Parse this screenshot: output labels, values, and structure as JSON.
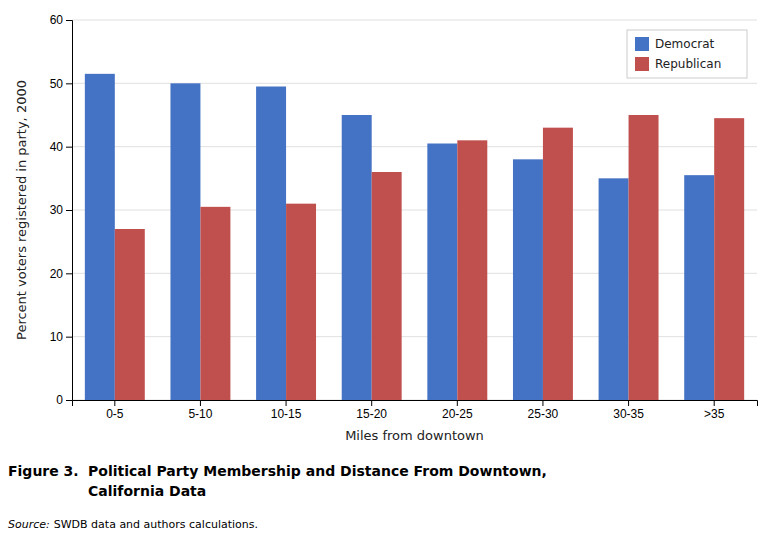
{
  "chart_data": {
    "type": "bar",
    "title": "Political Party Membership and Distance From Downtown,",
    "subtitle": "California Data",
    "annotations": [
      "Figure 3.",
      "Source:",
      "SWDB data and authors calculations."
    ],
    "x_label": "Miles from downtown",
    "y_label": "Percent voters registered in party, 2000",
    "categories": [
      "0-5",
      "5-10",
      "10-15",
      "15-20",
      "20-25",
      "25-30",
      "30-35",
      ">35"
    ],
    "series": [
      {
        "name": "Democrat",
        "color": "#4472C4",
        "values": [
          51.5,
          50.0,
          49.5,
          45.0,
          40.5,
          38.0,
          35.0,
          35.5
        ]
      },
      {
        "name": "Republican",
        "color": "#C0504D",
        "values": [
          27.0,
          30.5,
          31.0,
          36.0,
          41.0,
          43.0,
          45.0,
          44.5
        ]
      }
    ],
    "ylim": [
      0,
      60
    ],
    "yticks": [
      0,
      10,
      20,
      30,
      40,
      50,
      60
    ],
    "grid": true,
    "legend": "upper right"
  }
}
